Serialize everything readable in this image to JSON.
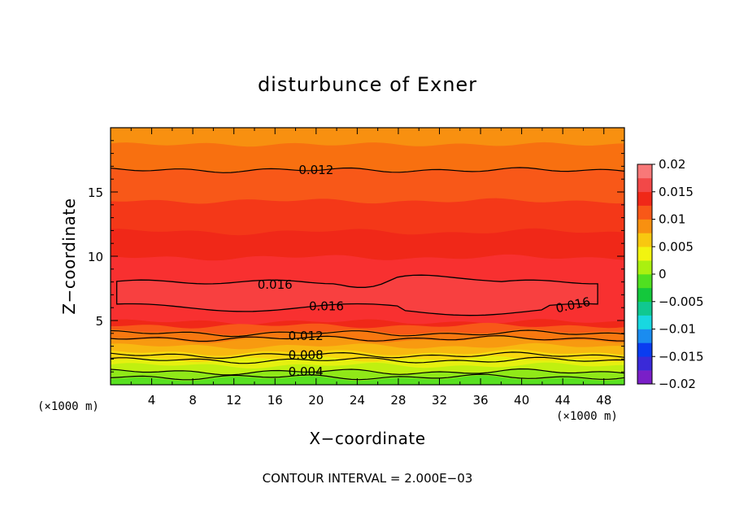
{
  "chart_data": {
    "type": "contour",
    "title": "disturbunce of Exner",
    "xlabel": "X−coordinate",
    "ylabel": "Z−coordinate",
    "x_unit": "(×1000 m)",
    "y_unit": "(×1000 m)",
    "xlim": [
      0,
      50
    ],
    "ylim": [
      0,
      20
    ],
    "x_ticks": [
      4,
      8,
      12,
      16,
      20,
      24,
      28,
      32,
      36,
      40,
      44,
      48
    ],
    "y_ticks": [
      5,
      10,
      15
    ],
    "colorbar": {
      "ticks": [
        0.02,
        0.015,
        0.01,
        0.005,
        0,
        -0.005,
        -0.01,
        -0.015,
        -0.02
      ],
      "tick_labels": [
        "0.02",
        "0.015",
        "0.01",
        "0.005",
        "0",
        "−0.005",
        "−0.01",
        "−0.015",
        "−0.02"
      ],
      "colors": [
        "#7a1fc8",
        "#3a2ad8",
        "#0a3cf0",
        "#1a8cf0",
        "#18d8e0",
        "#10c890",
        "#14c83c",
        "#50e020",
        "#aaf010",
        "#f2f410",
        "#f8c810",
        "#f89010",
        "#f85818",
        "#f02818",
        "#f24848",
        "#f87878"
      ],
      "range": [
        -0.02,
        0.02
      ]
    },
    "contour_labels": [
      {
        "value": "0.012",
        "x": 20,
        "z": 16.7
      },
      {
        "value": "0.016",
        "x": 16,
        "z": 7.8
      },
      {
        "value": "0.016",
        "x": 21,
        "z": 6.1
      },
      {
        "value": "0.016",
        "x": 45,
        "z": 6.2
      },
      {
        "value": "0.012",
        "x": 19,
        "z": 3.8
      },
      {
        "value": "0.008",
        "x": 19,
        "z": 2.3
      },
      {
        "value": "0.004",
        "x": 19,
        "z": 1.0
      }
    ],
    "contour_interval_label": "CONTOUR INTERVAL = 2.000E−03"
  }
}
